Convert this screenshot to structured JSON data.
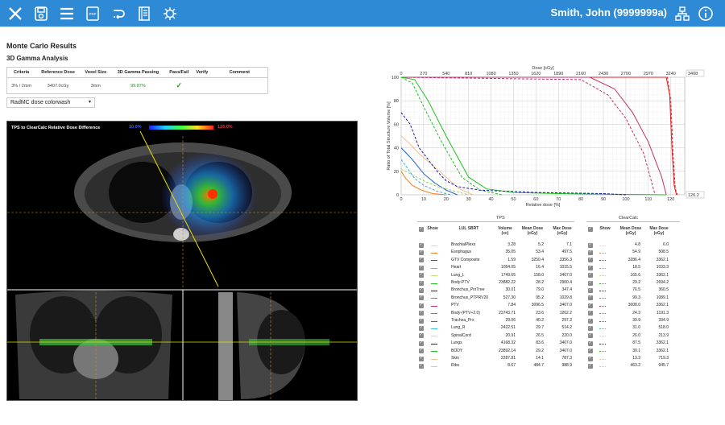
{
  "header": {
    "user": "Smith, John (9999999a)",
    "icons": [
      "close-icon",
      "save-icon",
      "menu-icon",
      "pdf-icon",
      "link-icon",
      "notebook-icon",
      "virus-icon"
    ],
    "bg_color": "#2f8ad6"
  },
  "results": {
    "title": "Monte Carlo Results",
    "subtitle": "3D Gamma Analysis",
    "columns": [
      "Criteria",
      "Reference Dose",
      "Voxel Size",
      "3D Gamma Passing",
      "Pass/Fail",
      "Verify",
      "Comment"
    ],
    "row": {
      "criteria": "3% / 2mm",
      "reference_dose": "3407.0cGy",
      "voxel_size": "3mm",
      "passing": "99.87%",
      "pass": "✓"
    },
    "select_value": "RadMC dose colorwash"
  },
  "viewer": {
    "title": "TPS to ClearCalc Relative Dose Difference",
    "scale_min": "10.0%",
    "scale_max": "120.0%"
  },
  "chart_data": {
    "type": "line",
    "xlabel": "Relative dose [%]",
    "ylabel": "Ratio of Total Structure Volume [%]",
    "top_axis_label": "Dose [cGy]",
    "x_ticks": [
      "0",
      "10",
      "20",
      "30",
      "40",
      "50",
      "60",
      "70",
      "80",
      "90",
      "100",
      "110",
      "120"
    ],
    "top_ticks": [
      "0",
      "270",
      "540",
      "810",
      "1080",
      "1350",
      "1620",
      "1890",
      "2160",
      "2430",
      "2700",
      "2970",
      "3240"
    ],
    "y_ticks": [
      "0",
      "20",
      "40",
      "60",
      "80",
      "100"
    ],
    "top_value": "3408",
    "right_value": "126.2",
    "xlim": [
      0,
      126.2
    ],
    "ylim": [
      0,
      100
    ],
    "series": [
      {
        "color": "#e02020",
        "x": [
          0,
          118,
          119.5,
          120.5,
          121.5,
          122.5
        ],
        "y": [
          100,
          100,
          85,
          40,
          8,
          0
        ]
      },
      {
        "color": "#e02020",
        "x": [
          0,
          118.5,
          120,
          121,
          122,
          123
        ],
        "y": [
          100,
          100,
          80,
          35,
          5,
          0
        ]
      },
      {
        "color": "#c0306a",
        "x": [
          0,
          84,
          95,
          103,
          110,
          116,
          118
        ],
        "y": [
          100,
          100,
          90,
          70,
          45,
          15,
          0
        ]
      },
      {
        "color": "#c0306a",
        "x": [
          0,
          80,
          92,
          100,
          108,
          113
        ],
        "y": [
          100,
          98,
          85,
          65,
          35,
          0
        ]
      },
      {
        "color": "#20c020",
        "x": [
          0,
          6,
          12,
          20,
          30,
          38,
          50,
          70,
          90,
          110,
          118
        ],
        "y": [
          100,
          98,
          80,
          50,
          15,
          5,
          2,
          1,
          0.5,
          0.2,
          0
        ]
      },
      {
        "color": "#20c020",
        "x": [
          0,
          5,
          10,
          18,
          27,
          35,
          45
        ],
        "y": [
          100,
          95,
          75,
          45,
          15,
          4,
          0
        ]
      },
      {
        "color": "#f0c090",
        "x": [
          0,
          3,
          8,
          14,
          20,
          26,
          32
        ],
        "y": [
          50,
          45,
          35,
          25,
          15,
          5,
          0
        ]
      },
      {
        "color": "#1a1aa0",
        "x": [
          0,
          4,
          8,
          12,
          16,
          20,
          25,
          35,
          60,
          90,
          100
        ],
        "y": [
          70,
          60,
          40,
          30,
          20,
          12,
          7,
          4,
          2,
          1,
          0
        ]
      },
      {
        "color": "#2060c0",
        "x": [
          0,
          5,
          10,
          15,
          20,
          25
        ],
        "y": [
          40,
          30,
          18,
          10,
          4,
          0
        ]
      },
      {
        "color": "#30b0e0",
        "x": [
          0,
          3,
          6,
          10,
          16,
          22
        ],
        "y": [
          30,
          22,
          14,
          8,
          3,
          0
        ]
      },
      {
        "color": "#f08020",
        "x": [
          0,
          2,
          5,
          9,
          14,
          20
        ],
        "y": [
          20,
          14,
          8,
          4,
          1,
          0
        ]
      },
      {
        "color": "#a0d060",
        "x": [
          0,
          4,
          10,
          16,
          24,
          30
        ],
        "y": [
          22,
          18,
          12,
          7,
          3,
          0
        ]
      }
    ]
  },
  "dvh_table": {
    "tps_header": "TPS",
    "cc_header": "ClearCalc",
    "columns": [
      "Show",
      "LUL SBRT",
      "Volume (cc)",
      "Mean Dose (cGy)",
      "Max Dose (cGy)",
      "Show",
      "Mean Dose (cGy)",
      "Max Dose (cGy)"
    ],
    "rows": [
      {
        "name": "BrachialPlexs",
        "color": "#f0e060",
        "volume": "3.28",
        "mean": "5.2",
        "max": "7.1",
        "cc_mean": "4.8",
        "cc_max": "6.0"
      },
      {
        "name": "Esophagus",
        "color": "#f08020",
        "volume": "35.05",
        "mean": "53.4",
        "max": "497.5",
        "cc_mean": "54.9",
        "cc_max": "508.5"
      },
      {
        "name": "GTV Composite",
        "color": "#e02020",
        "volume": "1.59",
        "mean": "3250.4",
        "max": "3356.3",
        "cc_mean": "3286.4",
        "cc_max": "3362.1"
      },
      {
        "name": "Heart",
        "color": "#f08080",
        "volume": "1054.05",
        "mean": "16.4",
        "max": "1015.5",
        "cc_mean": "18.5",
        "cc_max": "1033.3"
      },
      {
        "name": "Lung_L",
        "color": "#c0e080",
        "volume": "1749.65",
        "mean": "158.0",
        "max": "3407.0",
        "cc_mean": "165.6",
        "cc_max": "3362.1"
      },
      {
        "name": "Body-PTV",
        "color": "#20c020",
        "volume": "23882.22",
        "mean": "28.2",
        "max": "2900.4",
        "cc_mean": "29.2",
        "cc_max": "2694.2"
      },
      {
        "name": "Bronchus_PrxTree",
        "color": "#1a1aa0",
        "volume": "30.01",
        "mean": "79.0",
        "max": "347.4",
        "cc_mean": "76.5",
        "cc_max": "360.5"
      },
      {
        "name": "Bronchus_PTPRV20",
        "color": "#808080",
        "volume": "527.30",
        "mean": "95.2",
        "max": "1029.8",
        "cc_mean": "99.3",
        "cc_max": "1089.1"
      },
      {
        "name": "PTV",
        "color": "#c0306a",
        "volume": "7.84",
        "mean": "3096.5",
        "max": "3407.0",
        "cc_mean": "3008.0",
        "cc_max": "3362.1"
      },
      {
        "name": "Body-(PTV+2.0)",
        "color": "#20c020",
        "volume": "23743.71",
        "mean": "23.6",
        "max": "1262.2",
        "cc_mean": "24.3",
        "cc_max": "1191.3"
      },
      {
        "name": "Trachea_Prx",
        "color": "#806030",
        "volume": "29.06",
        "mean": "40.2",
        "max": "297.2",
        "cc_mean": "39.9",
        "cc_max": "334.9"
      },
      {
        "name": "Lung_R",
        "color": "#30c0e0",
        "volume": "2422.51",
        "mean": "29.7",
        "max": "514.2",
        "cc_mean": "31.0",
        "cc_max": "518.0"
      },
      {
        "name": "SpinalCord",
        "color": "#f0d080",
        "volume": "20.91",
        "mean": "26.5",
        "max": "220.0",
        "cc_mean": "26.0",
        "cc_max": "213.9"
      },
      {
        "name": "Lungs",
        "color": "#1a1aa0",
        "volume": "4168.32",
        "mean": "83.6",
        "max": "3407.0",
        "cc_mean": "87.5",
        "cc_max": "3362.1"
      },
      {
        "name": "BODY",
        "color": "#20c020",
        "volume": "23892.14",
        "mean": "29.2",
        "max": "3407.0",
        "cc_mean": "30.1",
        "cc_max": "3362.1"
      },
      {
        "name": "Skin",
        "color": "#f0c090",
        "volume": "2287.81",
        "mean": "14.1",
        "max": "787.3",
        "cc_mean": "13.3",
        "cc_max": "719.3"
      },
      {
        "name": "Ribs",
        "color": "#c0e060",
        "volume": "8.67",
        "mean": "484.7",
        "max": "988.9",
        "cc_mean": "463.2",
        "cc_max": "945.7"
      }
    ]
  }
}
